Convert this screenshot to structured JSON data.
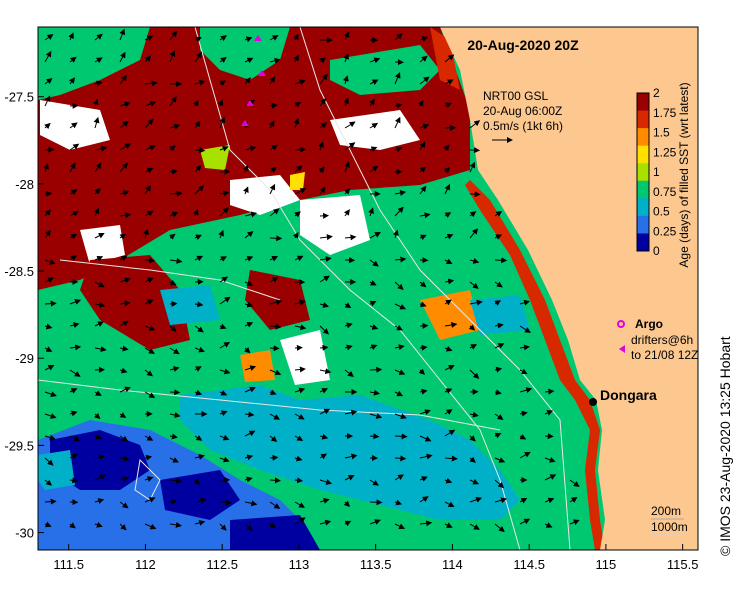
{
  "title": "20-Aug-2020 20Z",
  "vectors": {
    "label": "NRT00 GSL",
    "time": "20-Aug 06:00Z",
    "scale": "0.5m/s (1kt 6h)"
  },
  "colorbar": {
    "label": "Age (days) of filled SST (wrt latest)",
    "ticks": [
      "2",
      "1.75",
      "1.5",
      "1.25",
      "1",
      "0.75",
      "0.5",
      "0.25",
      "0"
    ],
    "colors": [
      "#9a0000",
      "#d82800",
      "#ff8c00",
      "#ffe000",
      "#a8e000",
      "#00c870",
      "#00b0c8",
      "#2870e8",
      "#0000a0"
    ]
  },
  "axes": {
    "x_ticks": [
      "111.5",
      "112",
      "112.5",
      "113",
      "113.5",
      "114",
      "114.5",
      "115",
      "115.5"
    ],
    "y_ticks": [
      "-27.5",
      "-28",
      "-28.5",
      "-29",
      "-29.5",
      "-30"
    ],
    "lon_range": [
      111.3,
      115.6
    ],
    "lat_range": [
      -27.1,
      -30.1
    ]
  },
  "legend": {
    "argo_label": "Argo",
    "drifters_line1": "drifters@6h",
    "drifters_line2": "to 21/08 12Z"
  },
  "place": {
    "name": "Dongara"
  },
  "bathy": {
    "line1": "200m",
    "line2": "1000m"
  },
  "credit": "© IMOS 23-Aug-2020 13:25 Hobart"
}
